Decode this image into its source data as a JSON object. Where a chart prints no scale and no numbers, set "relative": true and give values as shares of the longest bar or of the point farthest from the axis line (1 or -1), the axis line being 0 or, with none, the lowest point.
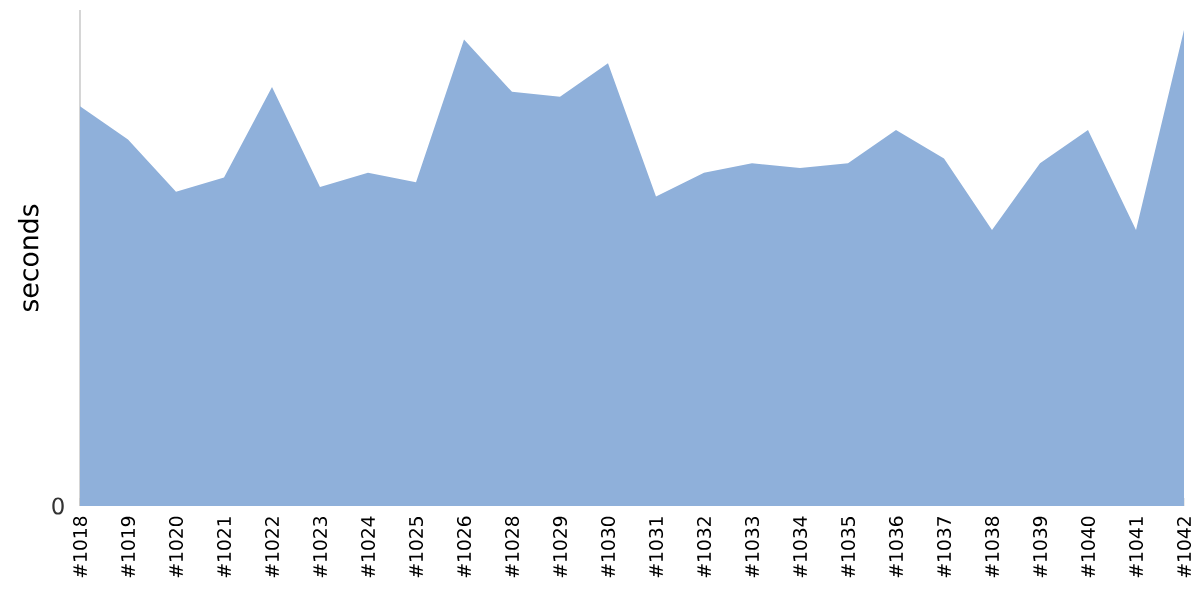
{
  "chart_data": {
    "type": "area",
    "ylabel": "seconds",
    "relative": true,
    "annotations": [
      "0"
    ],
    "color": "#8fb0da",
    "categories": [
      "#1018",
      "#1019",
      "#1020",
      "#1021",
      "#1022",
      "#1023",
      "#1024",
      "#1025",
      "#1026",
      "#1028",
      "#1029",
      "#1030",
      "#1031",
      "#1032",
      "#1033",
      "#1034",
      "#1035",
      "#1036",
      "#1037",
      "#1038",
      "#1039",
      "#1040",
      "#1041",
      "#1042"
    ],
    "values": [
      0.84,
      0.77,
      0.66,
      0.69,
      0.88,
      0.67,
      0.7,
      0.68,
      0.98,
      0.87,
      0.86,
      0.93,
      0.65,
      0.7,
      0.72,
      0.71,
      0.72,
      0.79,
      0.73,
      0.58,
      0.72,
      0.79,
      0.58,
      1
    ]
  }
}
